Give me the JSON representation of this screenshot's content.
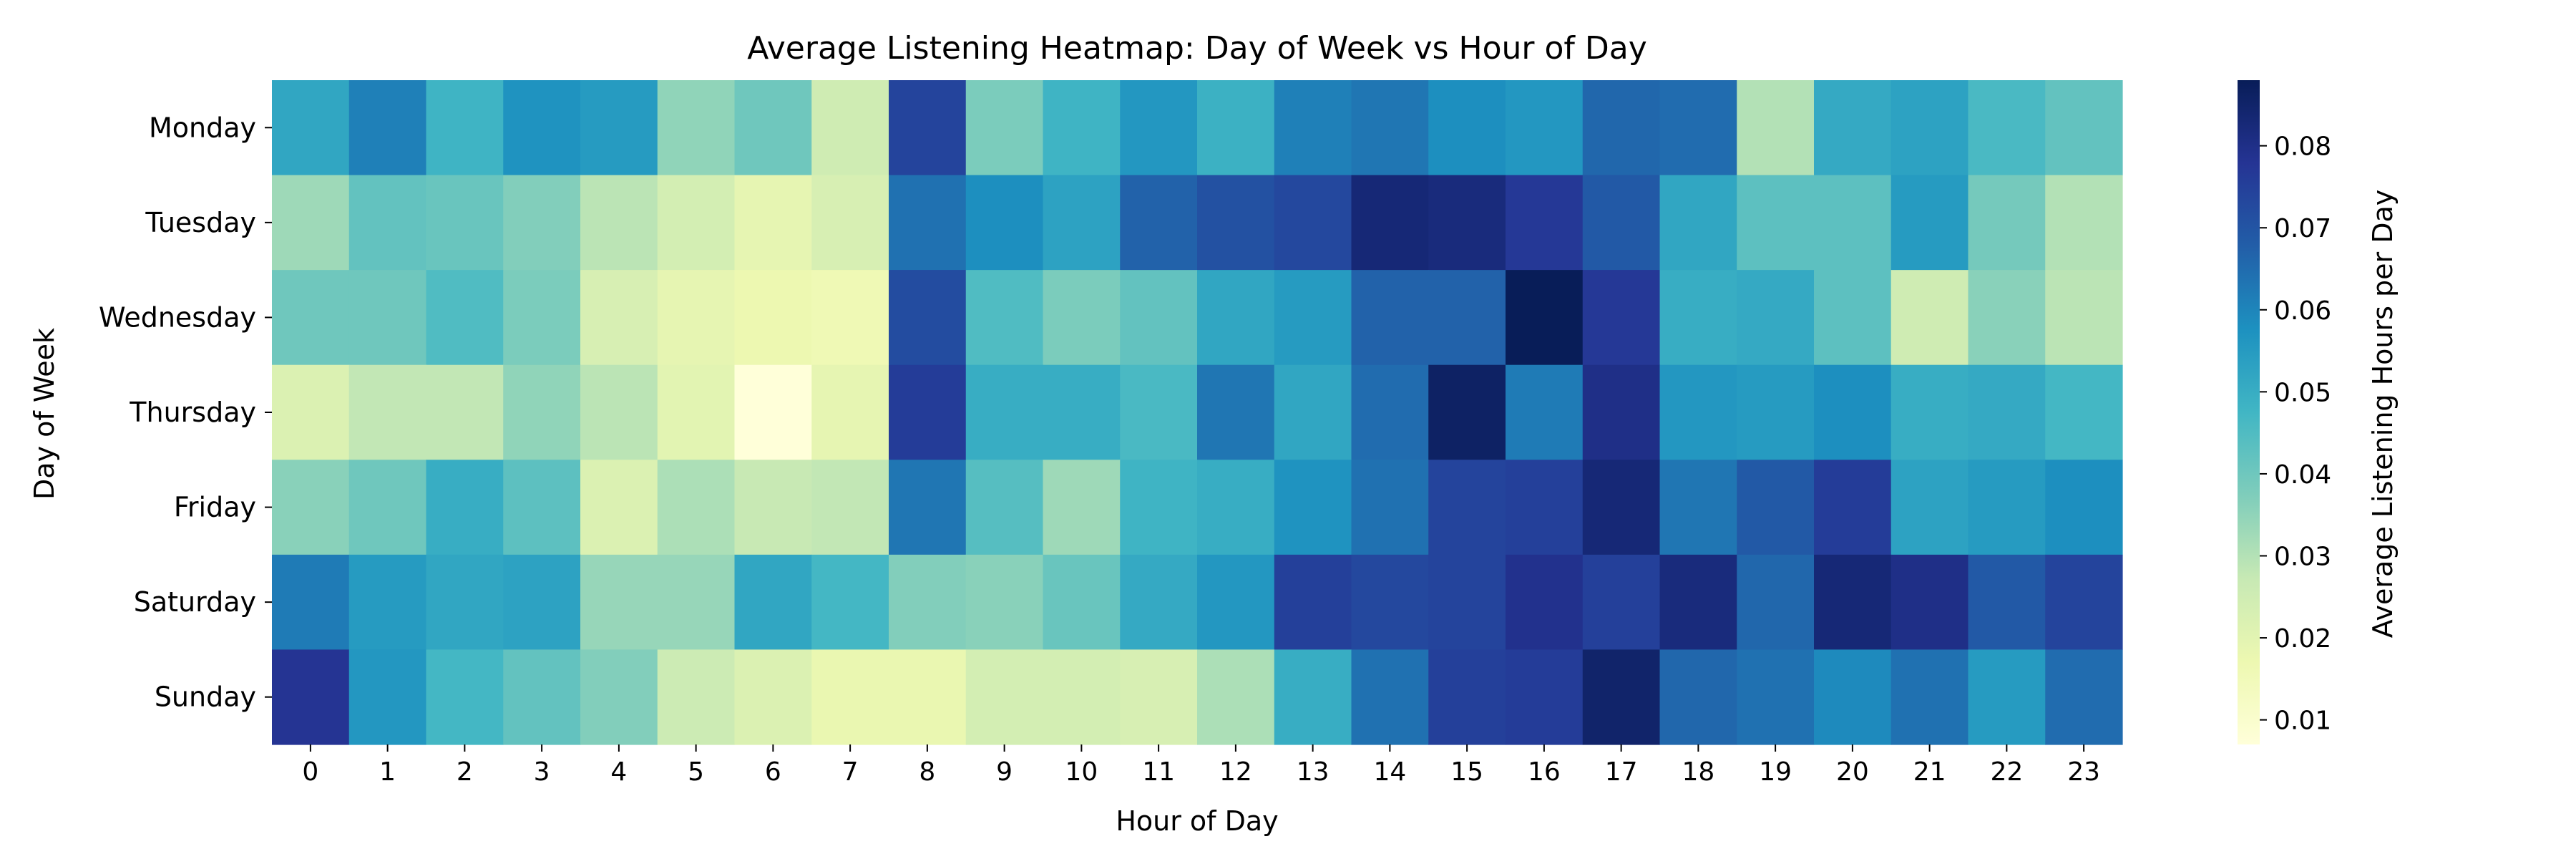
{
  "chart_data": {
    "type": "heatmap",
    "title": "Average Listening Heatmap: Day of Week vs Hour of Day",
    "xlabel": "Hour of Day",
    "ylabel": "Day of Week",
    "colorbar_label": "Average Listening Hours per Day",
    "colormap": "YlGnBu",
    "vmin": 0.007,
    "vmax": 0.088,
    "colorbar_ticks": [
      "0.01",
      "0.02",
      "0.03",
      "0.04",
      "0.05",
      "0.06",
      "0.07",
      "0.08"
    ],
    "x": [
      "0",
      "1",
      "2",
      "3",
      "4",
      "5",
      "6",
      "7",
      "8",
      "9",
      "10",
      "11",
      "12",
      "13",
      "14",
      "15",
      "16",
      "17",
      "18",
      "19",
      "20",
      "21",
      "22",
      "23"
    ],
    "y": [
      "Monday",
      "Tuesday",
      "Wednesday",
      "Thursday",
      "Friday",
      "Saturday",
      "Sunday"
    ],
    "values": [
      [
        0.052,
        0.061,
        0.048,
        0.057,
        0.055,
        0.035,
        0.04,
        0.025,
        0.074,
        0.038,
        0.048,
        0.056,
        0.049,
        0.061,
        0.063,
        0.058,
        0.056,
        0.066,
        0.065,
        0.03,
        0.051,
        0.053,
        0.046,
        0.042
      ],
      [
        0.033,
        0.042,
        0.041,
        0.037,
        0.029,
        0.024,
        0.019,
        0.023,
        0.064,
        0.058,
        0.053,
        0.067,
        0.071,
        0.073,
        0.083,
        0.082,
        0.077,
        0.069,
        0.052,
        0.043,
        0.043,
        0.055,
        0.039,
        0.03
      ],
      [
        0.04,
        0.04,
        0.045,
        0.038,
        0.023,
        0.019,
        0.017,
        0.016,
        0.072,
        0.045,
        0.038,
        0.042,
        0.052,
        0.055,
        0.067,
        0.067,
        0.088,
        0.077,
        0.05,
        0.051,
        0.043,
        0.025,
        0.036,
        0.029
      ],
      [
        0.022,
        0.028,
        0.028,
        0.035,
        0.029,
        0.02,
        0.007,
        0.019,
        0.076,
        0.05,
        0.05,
        0.046,
        0.063,
        0.052,
        0.065,
        0.086,
        0.062,
        0.08,
        0.056,
        0.055,
        0.058,
        0.05,
        0.051,
        0.047
      ],
      [
        0.036,
        0.04,
        0.05,
        0.043,
        0.022,
        0.031,
        0.027,
        0.028,
        0.063,
        0.044,
        0.033,
        0.048,
        0.05,
        0.057,
        0.064,
        0.074,
        0.075,
        0.083,
        0.063,
        0.069,
        0.076,
        0.053,
        0.055,
        0.058
      ],
      [
        0.062,
        0.055,
        0.052,
        0.053,
        0.034,
        0.034,
        0.052,
        0.047,
        0.037,
        0.036,
        0.041,
        0.051,
        0.056,
        0.075,
        0.073,
        0.074,
        0.079,
        0.075,
        0.082,
        0.066,
        0.083,
        0.08,
        0.069,
        0.074
      ],
      [
        0.078,
        0.056,
        0.047,
        0.042,
        0.037,
        0.026,
        0.022,
        0.018,
        0.018,
        0.024,
        0.024,
        0.023,
        0.031,
        0.05,
        0.064,
        0.075,
        0.076,
        0.085,
        0.066,
        0.064,
        0.059,
        0.064,
        0.055,
        0.065
      ]
    ]
  }
}
